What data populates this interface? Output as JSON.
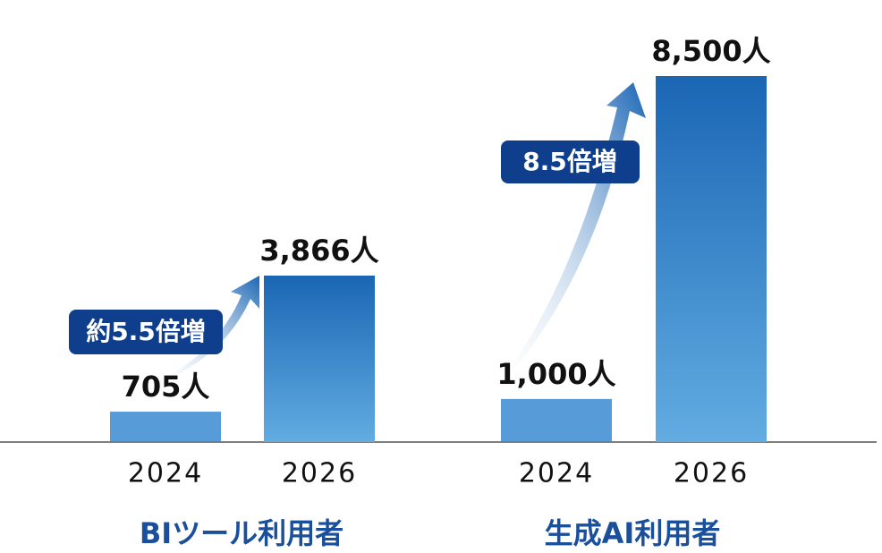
{
  "chart_data": [
    {
      "type": "bar",
      "xlabel": "BIツール利用者",
      "categories": [
        "2024",
        "2026"
      ],
      "values": [
        705,
        3866
      ],
      "value_labels": [
        "705人",
        "3,866人"
      ],
      "annotation": "約5.5倍増",
      "color": "#3a8ad2",
      "ylim": [
        0,
        8500
      ]
    },
    {
      "type": "bar",
      "xlabel": "生成AI利用者",
      "categories": [
        "2024",
        "2026"
      ],
      "values": [
        1000,
        8500
      ],
      "value_labels": [
        "1,000人",
        "8,500人"
      ],
      "annotation": "8.5倍増",
      "color": "#3a8ad2",
      "ylim": [
        0,
        8500
      ]
    }
  ]
}
